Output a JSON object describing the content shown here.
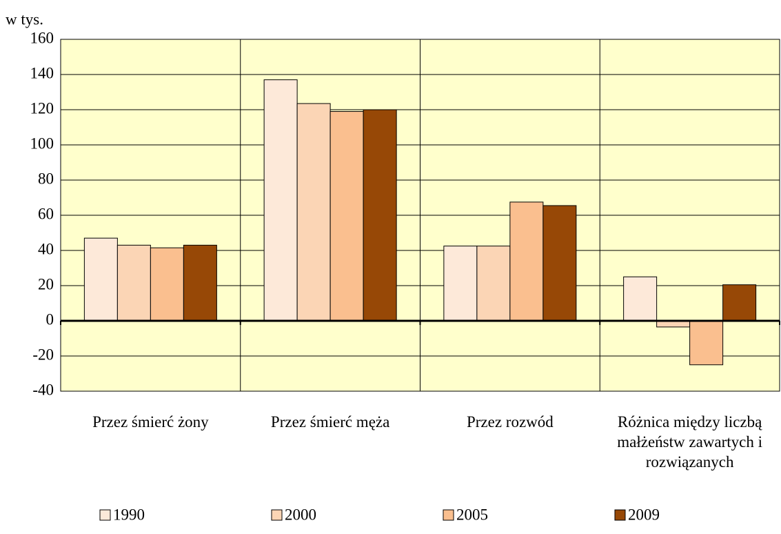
{
  "chart_data": {
    "type": "bar",
    "y_label": "w tys.",
    "categories": [
      "Przez śmierć żony",
      "Przez śmierć męża",
      "Przez rozwód",
      "Różnica między liczbą małżeństw zawartych i rozwiązanych"
    ],
    "series": [
      {
        "name": "1990",
        "color": "#fde9d9",
        "values": [
          47,
          137,
          42.5,
          25
        ]
      },
      {
        "name": "2000",
        "color": "#fbd5b5",
        "values": [
          43,
          123.5,
          42.5,
          -3.5
        ]
      },
      {
        "name": "2005",
        "color": "#fabf8f",
        "values": [
          41.5,
          119,
          67.5,
          -25
        ]
      },
      {
        "name": "2009",
        "color": "#974806",
        "values": [
          43,
          120,
          65.5,
          20.5
        ]
      }
    ],
    "ylim": [
      -40,
      160
    ],
    "yticks": [
      -40,
      -20,
      0,
      20,
      40,
      60,
      80,
      100,
      120,
      140,
      160
    ],
    "grid": true,
    "plot_background": "#ffffcc",
    "legend": "bottom"
  }
}
